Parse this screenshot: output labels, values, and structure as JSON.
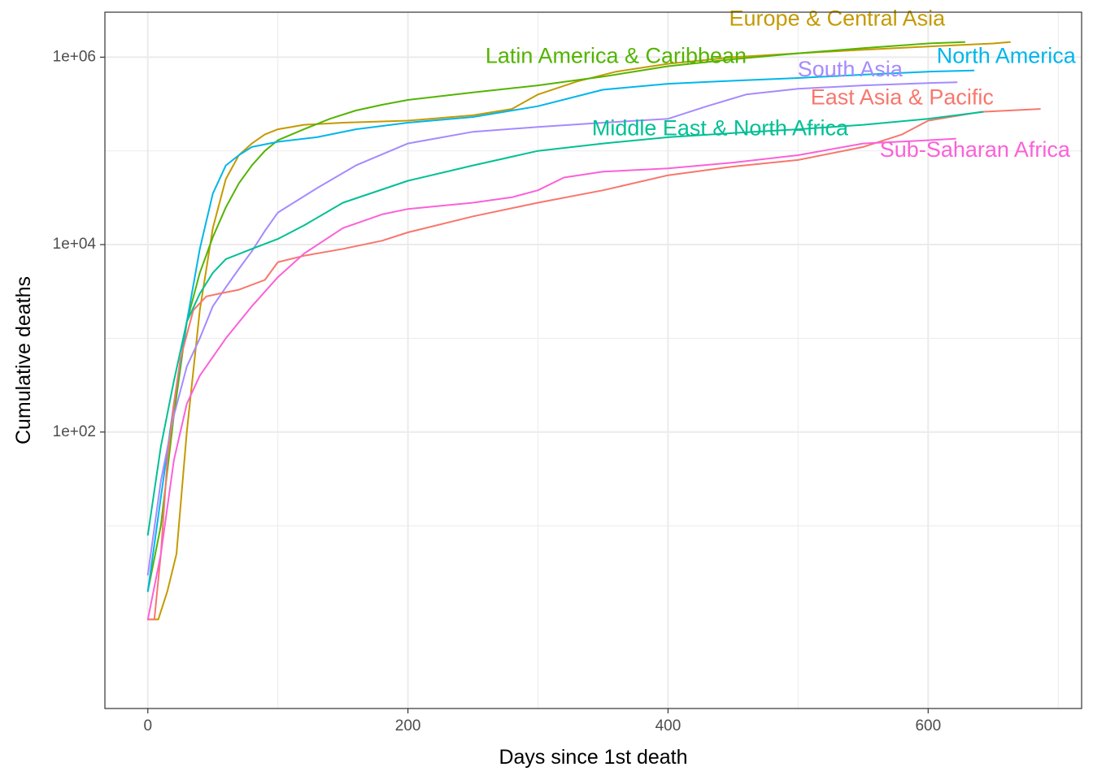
{
  "chart_data": {
    "type": "line",
    "title": "",
    "xlabel": "Days since 1st death",
    "ylabel": "Cumulative deaths",
    "y_scale": "log10",
    "xlim": [
      -33,
      718
    ],
    "ylim_log10": [
      -0.95,
      6.48
    ],
    "x_ticks": [
      0,
      200,
      400,
      600
    ],
    "x_tick_labels": [
      "0",
      "200",
      "400",
      "600"
    ],
    "y_ticks": [
      100,
      10000,
      1000000
    ],
    "y_tick_labels": [
      "1e+02",
      "1e+04",
      "1e+06"
    ],
    "grid": true,
    "legend": "none (direct labels at line ends)",
    "series": [
      {
        "name": "Europe & Central Asia",
        "color": "#C49A00",
        "points": [
          [
            0,
            1
          ],
          [
            8,
            1
          ],
          [
            15,
            2
          ],
          [
            22,
            5
          ],
          [
            30,
            100
          ],
          [
            40,
            2000
          ],
          [
            50,
            15000
          ],
          [
            60,
            50000
          ],
          [
            70,
            90000
          ],
          [
            80,
            120000
          ],
          [
            90,
            150000
          ],
          [
            100,
            170000
          ],
          [
            120,
            190000
          ],
          [
            150,
            200000
          ],
          [
            200,
            210000
          ],
          [
            250,
            240000
          ],
          [
            280,
            280000
          ],
          [
            300,
            400000
          ],
          [
            330,
            550000
          ],
          [
            360,
            700000
          ],
          [
            400,
            850000
          ],
          [
            450,
            1000000
          ],
          [
            500,
            1100000
          ],
          [
            550,
            1200000
          ],
          [
            600,
            1300000
          ],
          [
            650,
            1400000
          ],
          [
            663,
            1450000
          ]
        ]
      },
      {
        "name": "Latin America & Caribbean",
        "color": "#53B400",
        "points": [
          [
            0,
            2
          ],
          [
            10,
            10
          ],
          [
            20,
            150
          ],
          [
            30,
            1500
          ],
          [
            40,
            5000
          ],
          [
            50,
            12000
          ],
          [
            60,
            25000
          ],
          [
            70,
            45000
          ],
          [
            80,
            70000
          ],
          [
            90,
            100000
          ],
          [
            100,
            130000
          ],
          [
            120,
            170000
          ],
          [
            140,
            220000
          ],
          [
            160,
            270000
          ],
          [
            180,
            310000
          ],
          [
            200,
            350000
          ],
          [
            250,
            420000
          ],
          [
            300,
            500000
          ],
          [
            350,
            620000
          ],
          [
            400,
            800000
          ],
          [
            450,
            950000
          ],
          [
            500,
            1100000
          ],
          [
            550,
            1250000
          ],
          [
            600,
            1400000
          ],
          [
            628,
            1450000
          ]
        ]
      },
      {
        "name": "North America",
        "color": "#00B6EB",
        "points": [
          [
            0,
            2
          ],
          [
            10,
            20
          ],
          [
            20,
            200
          ],
          [
            30,
            1500
          ],
          [
            40,
            9000
          ],
          [
            50,
            35000
          ],
          [
            60,
            70000
          ],
          [
            70,
            90000
          ],
          [
            80,
            110000
          ],
          [
            100,
            125000
          ],
          [
            130,
            140000
          ],
          [
            160,
            170000
          ],
          [
            200,
            200000
          ],
          [
            250,
            230000
          ],
          [
            300,
            300000
          ],
          [
            350,
            450000
          ],
          [
            400,
            520000
          ],
          [
            450,
            560000
          ],
          [
            500,
            600000
          ],
          [
            550,
            650000
          ],
          [
            600,
            700000
          ],
          [
            635,
            720000
          ]
        ]
      },
      {
        "name": "South Asia",
        "color": "#A58AFF",
        "points": [
          [
            0,
            3
          ],
          [
            10,
            30
          ],
          [
            20,
            150
          ],
          [
            30,
            500
          ],
          [
            40,
            1000
          ],
          [
            50,
            2200
          ],
          [
            60,
            3500
          ],
          [
            70,
            5500
          ],
          [
            80,
            8500
          ],
          [
            90,
            14000
          ],
          [
            100,
            22000
          ],
          [
            130,
            40000
          ],
          [
            160,
            70000
          ],
          [
            200,
            120000
          ],
          [
            250,
            160000
          ],
          [
            300,
            180000
          ],
          [
            350,
            200000
          ],
          [
            400,
            220000
          ],
          [
            430,
            300000
          ],
          [
            460,
            400000
          ],
          [
            500,
            460000
          ],
          [
            550,
            500000
          ],
          [
            600,
            530000
          ],
          [
            622,
            540000
          ]
        ]
      },
      {
        "name": "East Asia & Pacific",
        "color": "#F8766D",
        "points": [
          [
            0,
            1
          ],
          [
            5,
            1
          ],
          [
            10,
            5
          ],
          [
            15,
            50
          ],
          [
            20,
            200
          ],
          [
            25,
            600
          ],
          [
            35,
            2000
          ],
          [
            45,
            2800
          ],
          [
            55,
            3000
          ],
          [
            70,
            3300
          ],
          [
            90,
            4200
          ],
          [
            100,
            6500
          ],
          [
            120,
            7600
          ],
          [
            150,
            9000
          ],
          [
            180,
            11000
          ],
          [
            200,
            13500
          ],
          [
            250,
            20000
          ],
          [
            300,
            28000
          ],
          [
            350,
            38000
          ],
          [
            400,
            55000
          ],
          [
            450,
            68000
          ],
          [
            500,
            80000
          ],
          [
            550,
            110000
          ],
          [
            580,
            150000
          ],
          [
            600,
            210000
          ],
          [
            640,
            260000
          ],
          [
            686,
            280000
          ]
        ]
      },
      {
        "name": "Middle East & North Africa",
        "color": "#00C094",
        "points": [
          [
            0,
            8
          ],
          [
            10,
            70
          ],
          [
            20,
            350
          ],
          [
            30,
            1500
          ],
          [
            40,
            3000
          ],
          [
            50,
            5000
          ],
          [
            60,
            7000
          ],
          [
            80,
            9000
          ],
          [
            100,
            11500
          ],
          [
            120,
            16000
          ],
          [
            150,
            28000
          ],
          [
            200,
            48000
          ],
          [
            250,
            70000
          ],
          [
            300,
            100000
          ],
          [
            350,
            120000
          ],
          [
            400,
            140000
          ],
          [
            450,
            155000
          ],
          [
            500,
            170000
          ],
          [
            550,
            190000
          ],
          [
            600,
            220000
          ],
          [
            642,
            260000
          ]
        ]
      },
      {
        "name": "Sub-Saharan Africa",
        "color": "#FB61D7",
        "points": [
          [
            0,
            1
          ],
          [
            10,
            5
          ],
          [
            20,
            50
          ],
          [
            30,
            200
          ],
          [
            40,
            400
          ],
          [
            60,
            1000
          ],
          [
            80,
            2200
          ],
          [
            100,
            4500
          ],
          [
            120,
            8000
          ],
          [
            150,
            15000
          ],
          [
            180,
            21000
          ],
          [
            200,
            24000
          ],
          [
            250,
            28000
          ],
          [
            280,
            32000
          ],
          [
            300,
            38000
          ],
          [
            320,
            52000
          ],
          [
            350,
            60000
          ],
          [
            400,
            65000
          ],
          [
            450,
            75000
          ],
          [
            500,
            90000
          ],
          [
            550,
            120000
          ],
          [
            600,
            130000
          ],
          [
            621,
            135000
          ]
        ]
      }
    ],
    "labels": [
      {
        "series": "Europe & Central Asia",
        "text": "Europe & Central Asia",
        "x": 530,
        "y": 2500000,
        "anchor": "middle"
      },
      {
        "series": "Latin America & Caribbean",
        "text": "Latin America & Caribbean",
        "x": 360,
        "y": 1000000,
        "anchor": "middle"
      },
      {
        "series": "North America",
        "text": "North America",
        "x": 660,
        "y": 1000000,
        "anchor": "middle"
      },
      {
        "series": "South Asia",
        "text": "South Asia",
        "x": 540,
        "y": 720000,
        "anchor": "middle"
      },
      {
        "series": "East Asia & Pacific",
        "text": "East Asia & Pacific",
        "x": 580,
        "y": 360000,
        "anchor": "middle"
      },
      {
        "series": "Middle East & North Africa",
        "text": "Middle East & North Africa",
        "x": 440,
        "y": 170000,
        "anchor": "middle"
      },
      {
        "series": "Sub-Saharan Africa",
        "text": "Sub-Saharan Africa",
        "x": 636,
        "y": 100000,
        "anchor": "middle"
      }
    ]
  }
}
